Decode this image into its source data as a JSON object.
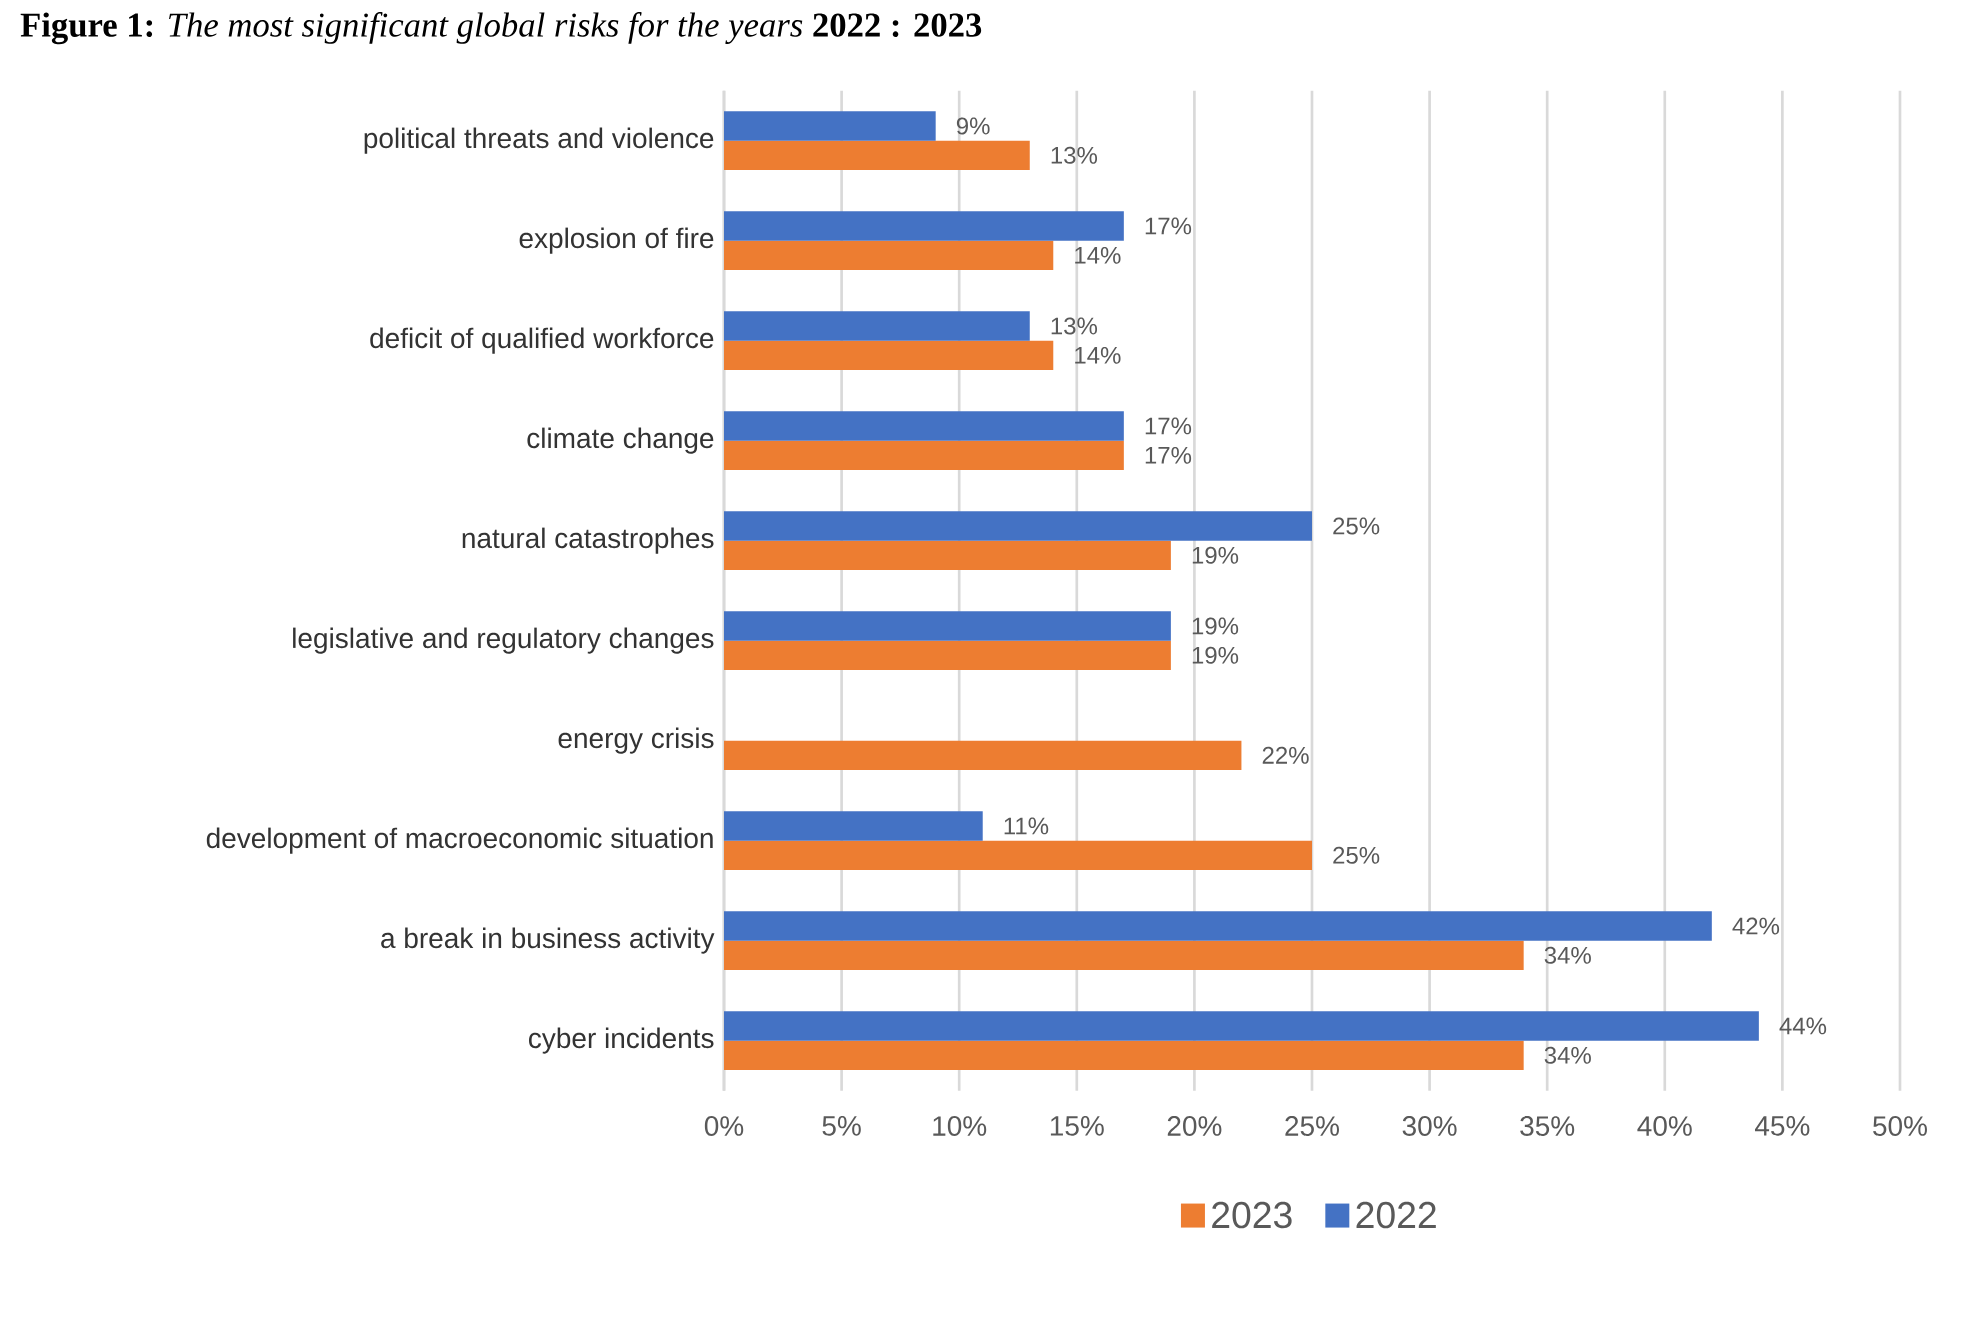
{
  "chart_data": {
    "type": "bar",
    "orientation": "horizontal",
    "title": "**Figure 1:** *The most significant global risks for the years* **2022 : 2023**",
    "categories": [
      "political threats and violence",
      "explosion of fire",
      "deficit of qualified workforce",
      "climate change",
      "natural catastrophes",
      "legislative and regulatory changes",
      "energy crisis",
      "development of macroeconomic situation",
      "a break in business activity",
      "cyber incidents"
    ],
    "series": [
      {
        "name": "2023",
        "color": "#ed7d31",
        "values": [
          13,
          14,
          14,
          17,
          19,
          19,
          22,
          25,
          34,
          34
        ],
        "value_labels": [
          "13%",
          "14%",
          "14%",
          "17%",
          "19%",
          "19%",
          "22%",
          "25%",
          "34%",
          "34%"
        ]
      },
      {
        "name": "2022",
        "color": "#4472c4",
        "values": [
          9,
          17,
          13,
          17,
          25,
          19,
          null,
          11,
          42,
          44
        ],
        "value_labels": [
          "9%",
          "17%",
          "13%",
          "17%",
          "25%",
          "19%",
          null,
          "11%",
          "42%",
          "44%"
        ]
      }
    ],
    "xlim": [
      0,
      50
    ],
    "xticks": [
      {
        "value": 0,
        "label": "0%"
      },
      {
        "value": 5,
        "label": "5%"
      },
      {
        "value": 10,
        "label": "10%"
      },
      {
        "value": 15,
        "label": "15%"
      },
      {
        "value": 20,
        "label": "20%"
      },
      {
        "value": 25,
        "label": "25%"
      },
      {
        "value": 30,
        "label": "30%"
      },
      {
        "value": 35,
        "label": "35%"
      },
      {
        "value": 40,
        "label": "40%"
      },
      {
        "value": 45,
        "label": "45%"
      },
      {
        "value": 50,
        "label": "50%"
      }
    ],
    "grid": "x",
    "legend": "bottom"
  }
}
